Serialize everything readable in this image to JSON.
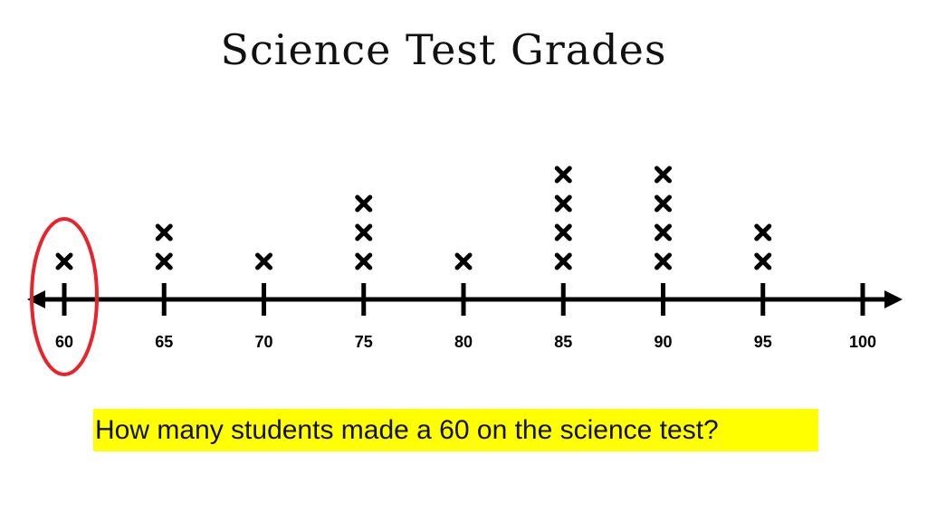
{
  "slide": {
    "title": "Science Test Grades",
    "question": "How many students made a 60 on the science test?"
  },
  "chart_data": {
    "type": "dot_plot",
    "title": "Science Test Grades",
    "xlabel": "",
    "ylabel": "",
    "xlim": [
      60,
      100
    ],
    "ticks": [
      60,
      65,
      70,
      75,
      80,
      85,
      90,
      95,
      100
    ],
    "x": [
      60,
      65,
      70,
      75,
      80,
      85,
      90,
      95,
      100
    ],
    "counts": [
      1,
      2,
      1,
      3,
      1,
      4,
      4,
      2,
      0
    ],
    "mark_symbol": "x",
    "highlight": {
      "value": 60,
      "color": "#e8232b"
    },
    "colors": {
      "line": "#000000",
      "mark": "#000000"
    }
  }
}
